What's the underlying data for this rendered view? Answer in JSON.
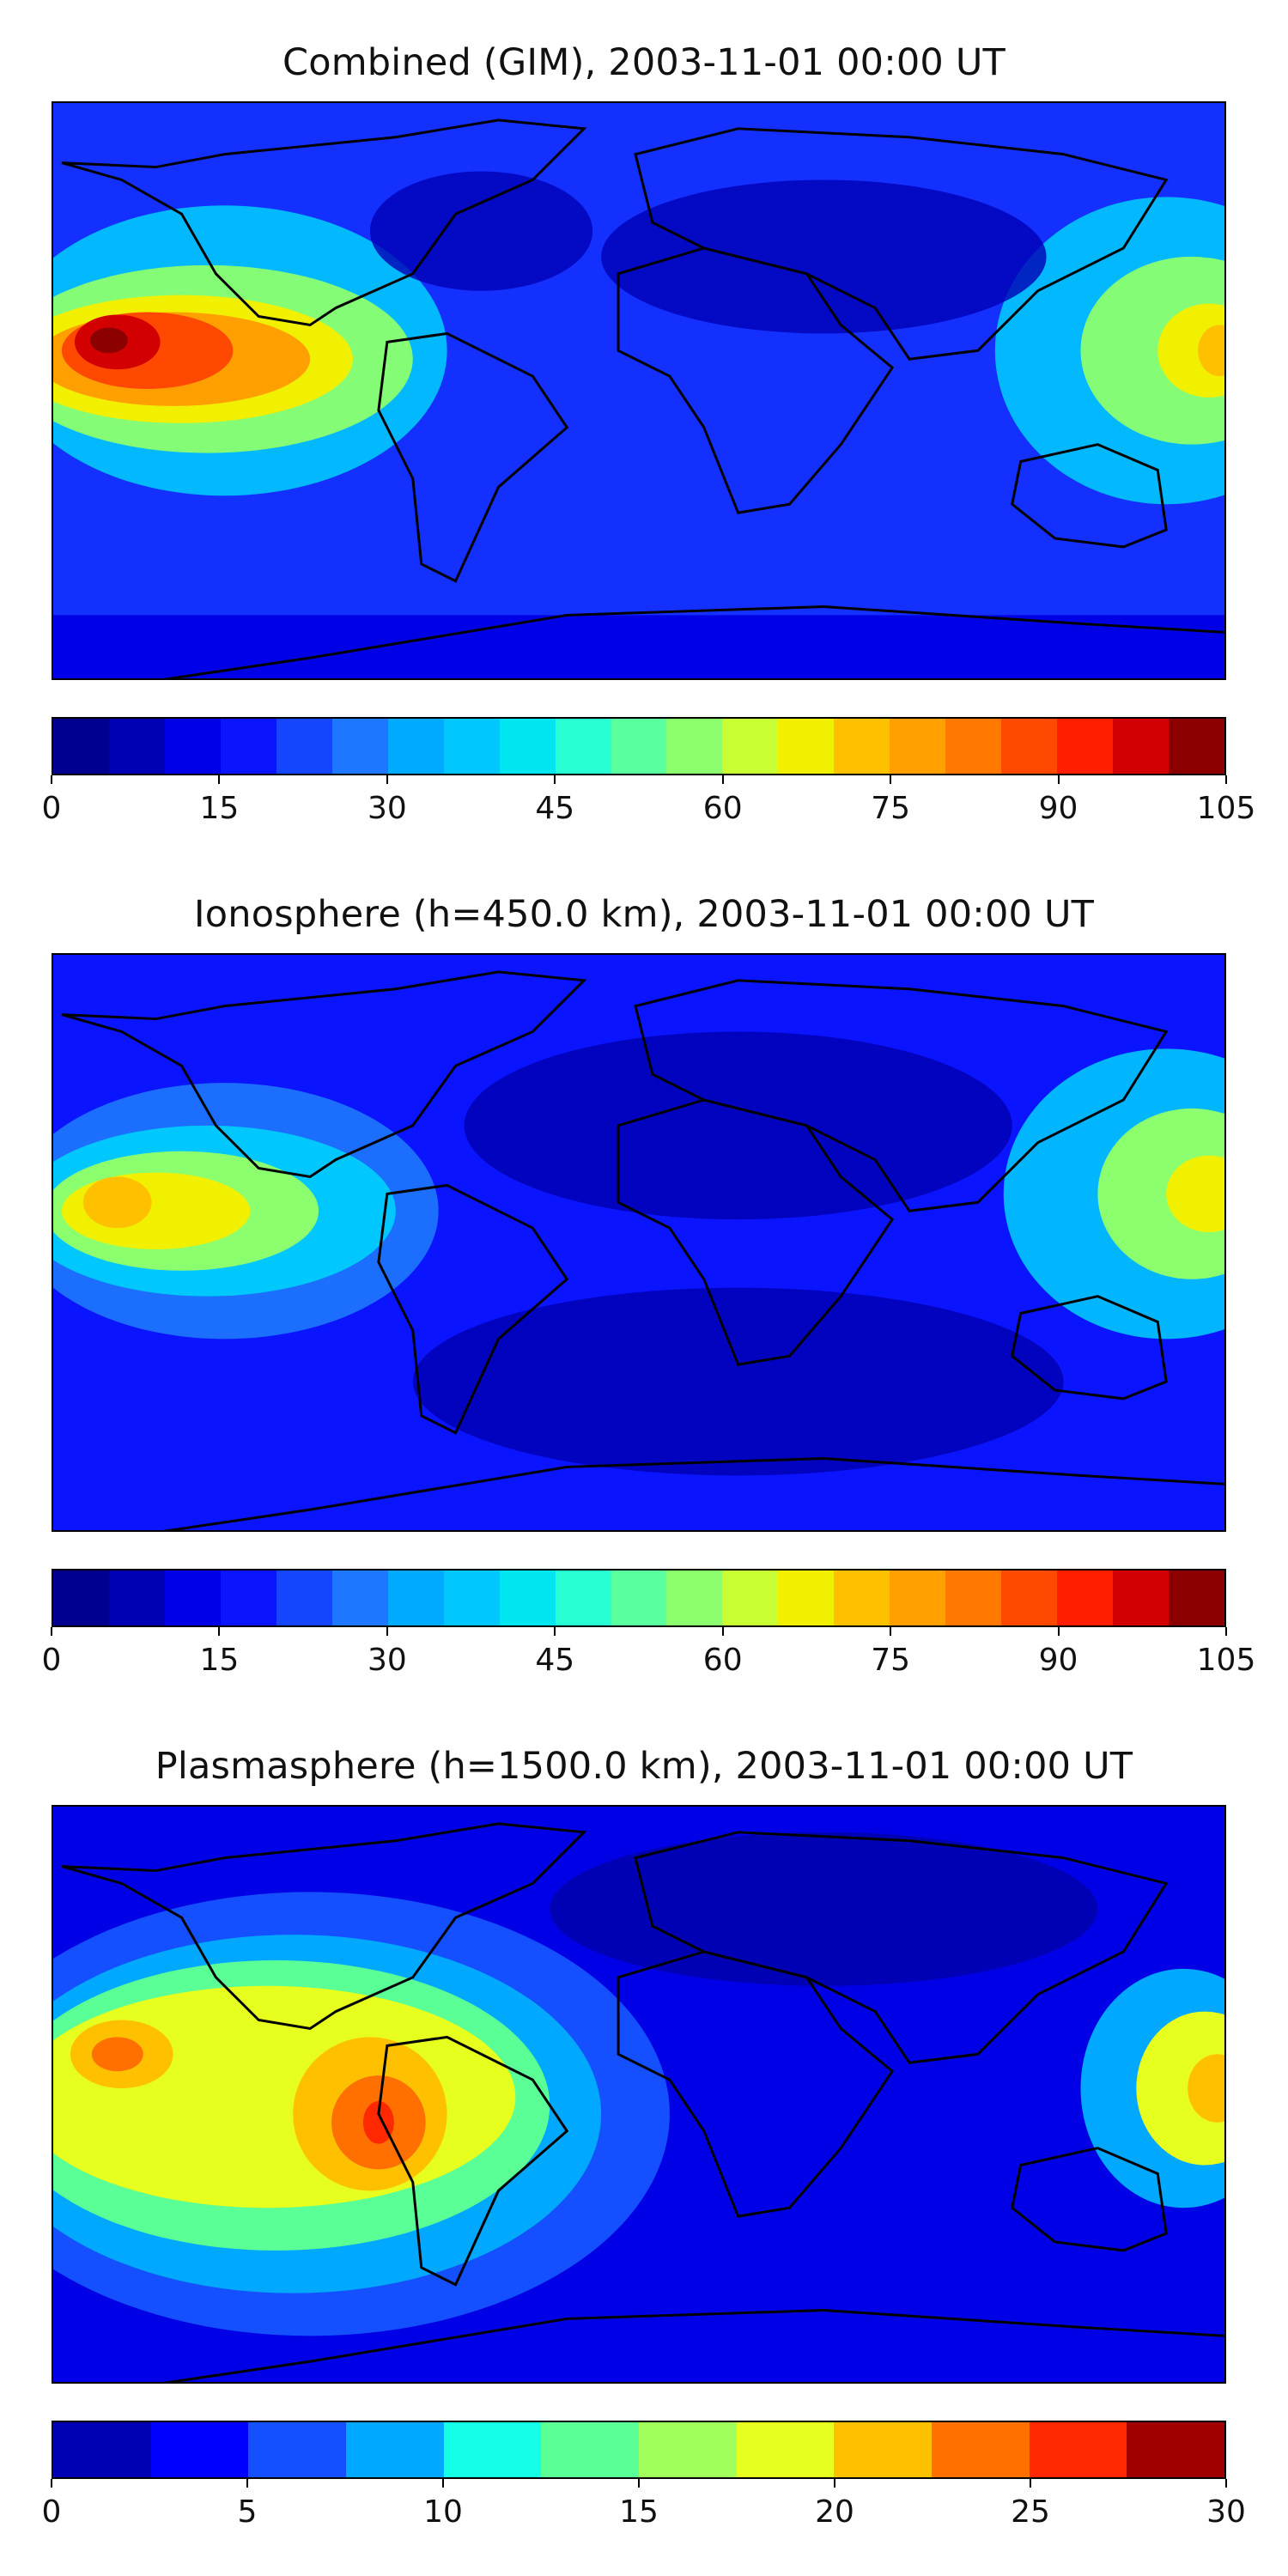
{
  "panels": [
    {
      "title": "Combined (GIM), 2003-11-01 00:00 UT",
      "colorbar": {
        "range": [
          0,
          105
        ],
        "ticks": [
          "0",
          "15",
          "30",
          "45",
          "60",
          "75",
          "90",
          "105"
        ],
        "colors": [
          "#00008f",
          "#0000b4",
          "#0000e6",
          "#0a14ff",
          "#1446ff",
          "#1e78ff",
          "#00aaff",
          "#00c8ff",
          "#00e6f0",
          "#28ffd2",
          "#5aff9e",
          "#8cff6e",
          "#c8ff32",
          "#f0f000",
          "#ffc000",
          "#ffa000",
          "#ff7800",
          "#ff4800",
          "#ff1e00",
          "#d20000",
          "#8c0000"
        ]
      },
      "colormap": "jet"
    },
    {
      "title": "Ionosphere  (h=450.0 km), 2003-11-01 00:00 UT",
      "colorbar": {
        "range": [
          0,
          105
        ],
        "ticks": [
          "0",
          "15",
          "30",
          "45",
          "60",
          "75",
          "90",
          "105"
        ],
        "colors": [
          "#00008f",
          "#0000b4",
          "#0000e6",
          "#0a14ff",
          "#1446ff",
          "#1e78ff",
          "#00aaff",
          "#00c8ff",
          "#00e6f0",
          "#28ffd2",
          "#5aff9e",
          "#8cff6e",
          "#c8ff32",
          "#f0f000",
          "#ffc000",
          "#ffa000",
          "#ff7800",
          "#ff4800",
          "#ff1e00",
          "#d20000",
          "#8c0000"
        ]
      },
      "colormap": "jet"
    },
    {
      "title": "Plasmasphere (h=1500.0 km), 2003-11-01 00:00 UT",
      "colorbar": {
        "range": [
          0,
          30
        ],
        "ticks": [
          "0",
          "5",
          "10",
          "15",
          "20",
          "25",
          "30"
        ],
        "colors": [
          "#0000b4",
          "#0000ff",
          "#1450ff",
          "#00a8ff",
          "#14ffe6",
          "#5aff96",
          "#a0ff5a",
          "#e6ff1e",
          "#ffc000",
          "#ff7000",
          "#ff2800",
          "#a00000"
        ]
      },
      "colormap": "jet"
    }
  ]
}
